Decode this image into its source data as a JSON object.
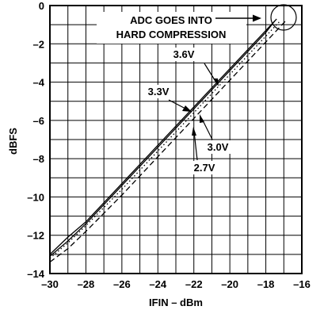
{
  "chart_data": {
    "type": "line",
    "title": "",
    "xlabel": "IFIN – dBm",
    "ylabel": "dBFS",
    "xlim": [
      -30,
      -16
    ],
    "ylim": [
      -14,
      0
    ],
    "x_ticks": [
      -30,
      -28,
      -26,
      -24,
      -22,
      -20,
      -18,
      -16
    ],
    "x_tick_labels": [
      "–30",
      "–28",
      "–26",
      "–24",
      "–22",
      "–20",
      "–18",
      "–16"
    ],
    "y_ticks": [
      0,
      -2,
      -4,
      -6,
      -8,
      -10,
      -12,
      -14
    ],
    "y_tick_labels": [
      "0",
      "–2",
      "–4",
      "–6",
      "–8",
      "–10",
      "–12",
      "–14"
    ],
    "grid": true,
    "legend": "none",
    "series": [
      {
        "name": "3.6V",
        "style": "solid",
        "x": [
          -30,
          -29,
          -28,
          -26,
          -24,
          -22,
          -20,
          -18,
          -17.4
        ],
        "y": [
          -13.0,
          -12.1,
          -11.3,
          -9.3,
          -7.3,
          -5.3,
          -3.3,
          -1.3,
          -0.7
        ]
      },
      {
        "name": "3.3V",
        "style": "solid",
        "x": [
          -30,
          -29,
          -28,
          -26,
          -24,
          -22,
          -20,
          -18,
          -17.5
        ],
        "y": [
          -13.1,
          -12.3,
          -11.4,
          -9.4,
          -7.4,
          -5.4,
          -3.4,
          -1.4,
          -0.8
        ]
      },
      {
        "name": "3.0V",
        "style": "dotted",
        "x": [
          -30,
          -29,
          -28,
          -26,
          -24,
          -22,
          -20,
          -18,
          -17.2
        ],
        "y": [
          -13.2,
          -12.4,
          -11.5,
          -9.6,
          -7.6,
          -5.6,
          -3.6,
          -1.6,
          -0.8
        ]
      },
      {
        "name": "2.7V",
        "style": "dashed",
        "x": [
          -30,
          -29,
          -28,
          -26,
          -24,
          -22,
          -20,
          -18,
          -16.9
        ],
        "y": [
          -13.4,
          -12.7,
          -11.8,
          -9.9,
          -7.9,
          -5.9,
          -3.9,
          -1.9,
          -0.8
        ]
      }
    ],
    "annotations": [
      {
        "text": "ADC GOES INTO"
      },
      {
        "text": "HARD COMPRESSION"
      }
    ]
  }
}
